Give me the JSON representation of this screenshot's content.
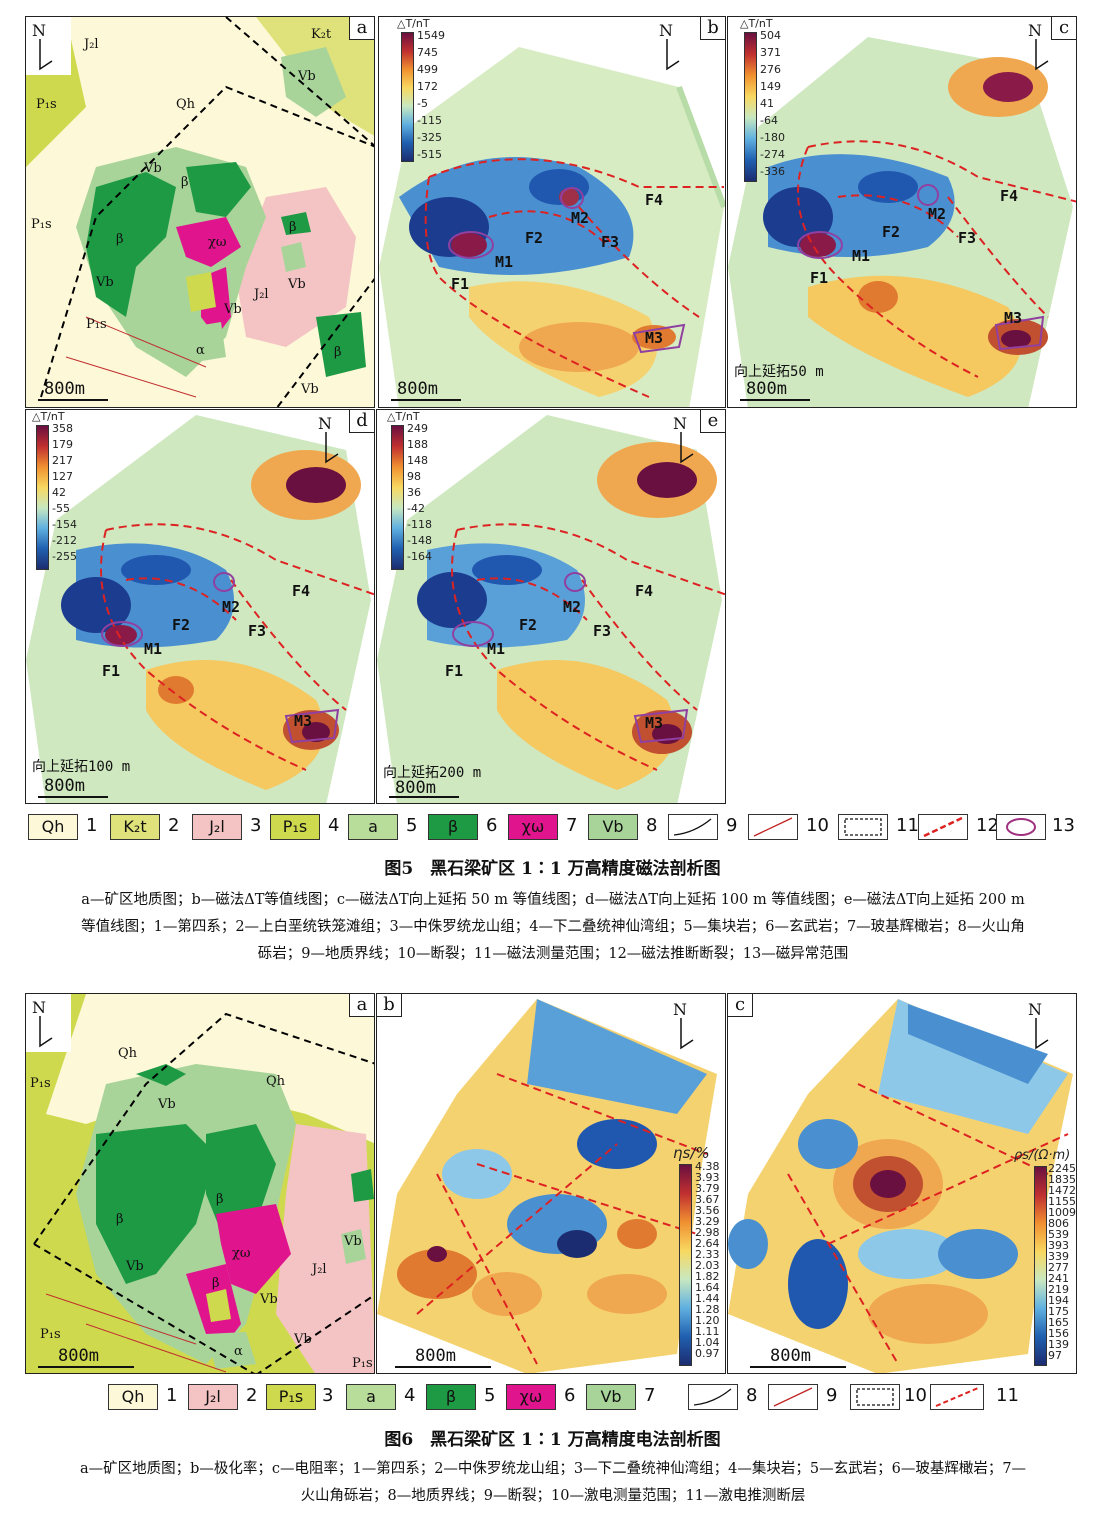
{
  "fig5": {
    "panels": {
      "a": {
        "letter": "a",
        "scale": "800m",
        "units": [
          "Qh",
          "K₂t",
          "J₂l",
          "P₁s",
          "P₁s",
          "P₁s",
          "Vb",
          "Vb",
          "Vb",
          "Vb",
          "Vb",
          "Vb",
          "β",
          "β",
          "β",
          "β",
          "χω",
          "J₂l",
          "α"
        ]
      },
      "b": {
        "letter": "b",
        "scale": "800m",
        "cbar_title": "△T/nT",
        "cbar_values": [
          "1549",
          "745",
          "499",
          "172",
          "-5",
          "-115",
          "-325",
          "-515"
        ],
        "labels": [
          "F1",
          "M1",
          "F2",
          "M2",
          "F3",
          "F4",
          "M3"
        ]
      },
      "c": {
        "letter": "c",
        "scale": "800m",
        "cbar_title": "△T/nT",
        "cbar_values": [
          "504",
          "371",
          "276",
          "149",
          "41",
          "-64",
          "-180",
          "-274",
          "-336"
        ],
        "labels": [
          "F1",
          "M1",
          "F2",
          "M2",
          "F3",
          "F4",
          "M3"
        ],
        "note": "向上延拓50 m"
      },
      "d": {
        "letter": "d",
        "scale": "800m",
        "cbar_title": "△T/nT",
        "cbar_values": [
          "358",
          "179",
          "217",
          "127",
          "42",
          "-55",
          "-154",
          "-212",
          "-255"
        ],
        "labels": [
          "F1",
          "M1",
          "F2",
          "M2",
          "F3",
          "F4",
          "M3"
        ],
        "note": "向上延拓100 m"
      },
      "e": {
        "letter": "e",
        "scale": "800m",
        "cbar_title": "△T/nT",
        "cbar_values": [
          "249",
          "188",
          "148",
          "98",
          "36",
          "-42",
          "-118",
          "-148",
          "-164"
        ],
        "labels": [
          "F1",
          "M1",
          "F2",
          "M2",
          "F3",
          "F4",
          "M3"
        ],
        "note": "向上延拓200 m"
      }
    },
    "legend": [
      {
        "sym": "Qh",
        "num": "1",
        "color": "#fdf8d8"
      },
      {
        "sym": "K₂t",
        "num": "2",
        "color": "#dfe27a"
      },
      {
        "sym": "J₂l",
        "num": "3",
        "color": "#f4c4c4"
      },
      {
        "sym": "P₁s",
        "num": "4",
        "color": "#cfd94e"
      },
      {
        "sym": "a",
        "num": "5",
        "color": "#b8dc9a"
      },
      {
        "sym": "β",
        "num": "6",
        "color": "#1e9a45"
      },
      {
        "sym": "χω",
        "num": "7",
        "color": "#e0148c"
      },
      {
        "sym": "Vb",
        "num": "8",
        "color": "#a8d49a"
      },
      {
        "sym": "",
        "num": "9",
        "color": "#ffffff"
      },
      {
        "sym": "",
        "num": "10",
        "color": "#ffffff"
      },
      {
        "sym": "",
        "num": "11",
        "color": "#ffffff"
      },
      {
        "sym": "",
        "num": "12",
        "color": "#ffffff"
      },
      {
        "sym": "",
        "num": "13",
        "color": "#ffffff"
      }
    ],
    "title": "图5　黑石梁矿区 1∶1 万高精度磁法剖析图",
    "caption_lines": [
      "a—矿区地质图；b—磁法ΔT等值线图；c—磁法ΔT向上延拓 50 m 等值线图；d—磁法ΔT向上延拓 100 m 等值线图；e—磁法ΔT向上延拓 200 m",
      "等值线图；1—第四系；2—上白垩统铁笼滩组；3—中侏罗统龙山组；4—下二叠统神仙湾组；5—集块岩；6—玄武岩；7—玻基辉橄岩；8—火山角",
      "砾岩；9—地质界线；10—断裂；11—磁法测量范围；12—磁法推断断裂；13—磁异常范围"
    ]
  },
  "fig6": {
    "panels": {
      "a": {
        "letter": "a",
        "scale": "800m",
        "units": [
          "Qh",
          "Qh",
          "P₁s",
          "P₁s",
          "P₁s",
          "Vb",
          "Vb",
          "Vb",
          "Vb",
          "Vb",
          "β",
          "β",
          "β",
          "χω",
          "J₂l",
          "α"
        ]
      },
      "b": {
        "letter": "b",
        "scale": "800m",
        "cbar_title": "ηs/%",
        "cbar_values": [
          "4.38",
          "3.93",
          "3.79",
          "3.67",
          "3.56",
          "3.29",
          "2.98",
          "2.64",
          "2.33",
          "2.03",
          "1.82",
          "1.64",
          "1.44",
          "1.28",
          "1.20",
          "1.11",
          "1.04",
          "0.97"
        ]
      },
      "c": {
        "letter": "c",
        "scale": "800m",
        "cbar_title": "ρs/(Ω·m)",
        "cbar_values": [
          "2245",
          "1835",
          "1472",
          "1155",
          "1009",
          "806",
          "539",
          "393",
          "339",
          "277",
          "241",
          "219",
          "194",
          "175",
          "165",
          "156",
          "139",
          "97"
        ]
      }
    },
    "legend": [
      {
        "sym": "Qh",
        "num": "1",
        "color": "#fdf8d8"
      },
      {
        "sym": "J₂l",
        "num": "2",
        "color": "#f4c4c4"
      },
      {
        "sym": "P₁s",
        "num": "3",
        "color": "#cfd94e"
      },
      {
        "sym": "a",
        "num": "4",
        "color": "#b8dc9a"
      },
      {
        "sym": "β",
        "num": "5",
        "color": "#1e9a45"
      },
      {
        "sym": "χω",
        "num": "6",
        "color": "#e0148c"
      },
      {
        "sym": "Vb",
        "num": "7",
        "color": "#a8d49a"
      },
      {
        "sym": "",
        "num": "8",
        "color": "#ffffff"
      },
      {
        "sym": "",
        "num": "9",
        "color": "#ffffff"
      },
      {
        "sym": "",
        "num": "10",
        "color": "#ffffff"
      },
      {
        "sym": "",
        "num": "11",
        "color": "#ffffff"
      }
    ],
    "title": "图6　黑石梁矿区 1∶1 万高精度电法剖析图",
    "caption_lines": [
      "a—矿区地质图；b—极化率；c—电阻率；1—第四系；2—中侏罗统龙山组；3—下二叠统神仙湾组；4—集块岩；5—玄武岩；6—玻基辉橄岩；7—",
      "火山角砾岩；8—地质界线；9—断裂；10—激电测量范围；11—激电推测断层"
    ]
  },
  "north_label": "N"
}
